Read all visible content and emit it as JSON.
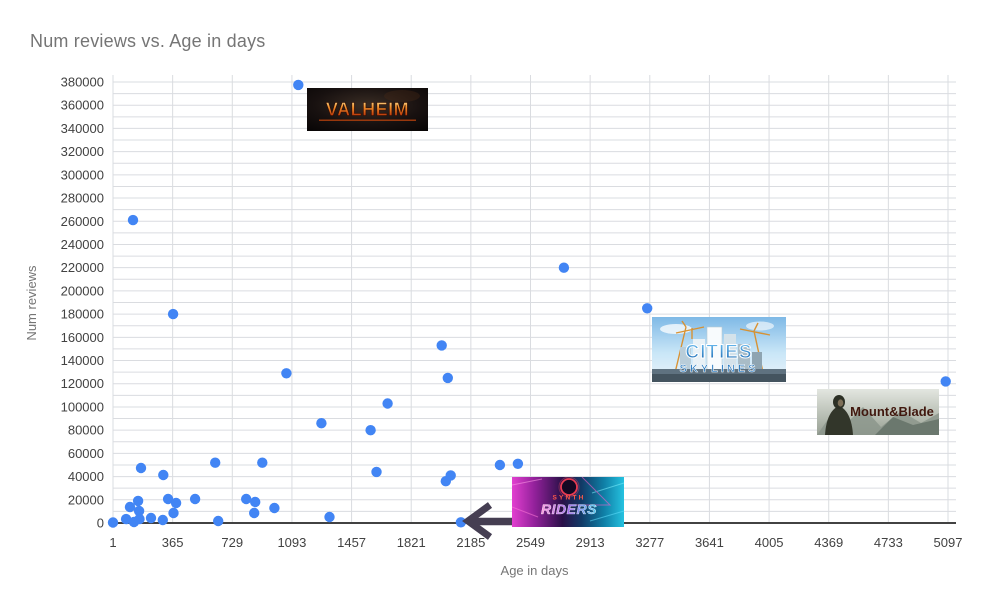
{
  "title": "Num reviews vs. Age in days",
  "chart_data": {
    "type": "scatter",
    "title": "Num reviews vs. Age in days",
    "xlabel": "Age in days",
    "ylabel": "Num reviews",
    "xlim": [
      1,
      5150
    ],
    "ylim": [
      0,
      387000
    ],
    "grid": true,
    "legend": false,
    "point_color": "#4285f4",
    "grid_color": "#dadce0",
    "axis_line_color": "#424242",
    "tick_label_color": "#424242",
    "axis_title_color": "#757575",
    "x_ticks": [
      1,
      365,
      729,
      1093,
      1457,
      1821,
      2185,
      2549,
      2913,
      3277,
      3641,
      4005,
      4369,
      4733,
      5097
    ],
    "y_ticks": [
      0,
      20000,
      40000,
      60000,
      80000,
      100000,
      120000,
      140000,
      160000,
      180000,
      200000,
      220000,
      240000,
      260000,
      280000,
      300000,
      320000,
      340000,
      360000,
      380000
    ],
    "y_minor_step": 10000,
    "points": [
      [
        1,
        400
      ],
      [
        81,
        3400
      ],
      [
        105,
        13800
      ],
      [
        123,
        261000
      ],
      [
        129,
        900
      ],
      [
        154,
        19000
      ],
      [
        160,
        10300
      ],
      [
        163,
        3400
      ],
      [
        172,
        47400
      ],
      [
        233,
        4300
      ],
      [
        305,
        2600
      ],
      [
        308,
        41400
      ],
      [
        337,
        20700
      ],
      [
        368,
        180000
      ],
      [
        370,
        8600
      ],
      [
        386,
        17200
      ],
      [
        502,
        20700
      ],
      [
        625,
        52000
      ],
      [
        643,
        1700
      ],
      [
        814,
        20700
      ],
      [
        863,
        8600
      ],
      [
        869,
        18100
      ],
      [
        912,
        52000
      ],
      [
        986,
        12900
      ],
      [
        1059,
        129000
      ],
      [
        1132,
        377500
      ],
      [
        1273,
        86000
      ],
      [
        1322,
        5200
      ],
      [
        1573,
        80000
      ],
      [
        1609,
        44000
      ],
      [
        1677,
        103000
      ],
      [
        2007,
        153000
      ],
      [
        2032,
        36000
      ],
      [
        2044,
        125000
      ],
      [
        2062,
        41000
      ],
      [
        2124,
        600
      ],
      [
        2362,
        50000
      ],
      [
        2472,
        51000
      ],
      [
        2753,
        220000
      ],
      [
        3261,
        185000
      ],
      [
        5083,
        122000
      ]
    ]
  },
  "overlays": {
    "valheim": {
      "label": "VALHEIM"
    },
    "cities": {
      "label_top": "CITIES",
      "label_bottom": "SKYLINES"
    },
    "synth": {
      "label_top": "SYNTH",
      "label_bottom": "RIDERS"
    },
    "mountblade": {
      "label": "Mount&Blade"
    }
  },
  "annotations": {
    "arrow_color": "#453e52"
  }
}
